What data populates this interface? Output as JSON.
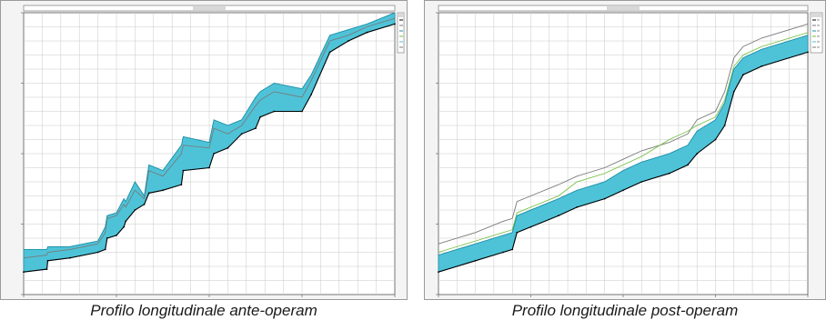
{
  "captions": {
    "left": "Profilo longitudinale ante-operam",
    "right": "Profilo longitudinale post-operam"
  },
  "colors": {
    "water": "#4ec3d8",
    "water_stroke": "#1e8fa8",
    "bed": "#000000",
    "ground": "#7a7a7a",
    "energy": "#6fbf3a",
    "grid": "#c8c8c8"
  },
  "chart_data": [
    {
      "type": "area",
      "caption": "Profilo longitudinale ante-operam",
      "grid": true,
      "legend_position": "top-right",
      "xlim": [
        0,
        4000
      ],
      "ylim": [
        0,
        100
      ],
      "x": [
        0,
        250,
        260,
        500,
        800,
        880,
        900,
        1000,
        1080,
        1100,
        1200,
        1300,
        1350,
        1500,
        1700,
        1720,
        2000,
        2050,
        2200,
        2350,
        2500,
        2550,
        2700,
        3000,
        3100,
        3300,
        3500,
        3700,
        4000
      ],
      "bed_elevation": [
        8,
        9,
        12,
        13,
        15,
        16,
        20,
        21,
        24,
        26,
        30,
        32,
        36,
        37,
        39,
        44,
        45,
        50,
        52,
        57,
        59,
        63,
        65,
        65,
        71,
        86,
        90,
        93,
        96
      ],
      "water_surface": [
        16,
        16,
        17,
        17,
        19,
        24,
        28,
        29,
        34,
        33,
        40,
        35,
        46,
        44,
        53,
        56,
        54,
        62,
        60,
        62,
        70,
        72,
        75,
        73,
        78,
        92,
        94,
        96,
        100
      ],
      "ground_left": [
        13,
        14,
        15,
        16,
        18,
        22,
        27,
        28,
        32,
        31,
        37,
        34,
        44,
        42,
        50,
        53,
        52,
        59,
        57,
        60,
        67,
        69,
        72,
        70,
        76,
        90,
        92,
        95,
        98
      ]
    },
    {
      "type": "area",
      "caption": "Profilo longitudinale post-operam",
      "grid": true,
      "legend_position": "top-right",
      "xlim": [
        0,
        4000
      ],
      "ylim": [
        0,
        100
      ],
      "x": [
        0,
        400,
        700,
        800,
        850,
        1000,
        1300,
        1500,
        1800,
        2000,
        2200,
        2500,
        2700,
        2800,
        3000,
        3100,
        3200,
        3300,
        3500,
        4000
      ],
      "bed_elevation": [
        8,
        12,
        15,
        16,
        22,
        24,
        28,
        31,
        34,
        37,
        40,
        43,
        46,
        50,
        55,
        60,
        72,
        78,
        81,
        86
      ],
      "water_surface": [
        14,
        18,
        21,
        22,
        28,
        30,
        34,
        37,
        40,
        44,
        47,
        50,
        53,
        58,
        62,
        68,
        80,
        84,
        87,
        92
      ],
      "ground_left": [
        18,
        22,
        26,
        27,
        33,
        35,
        39,
        42,
        45,
        48,
        51,
        54,
        57,
        62,
        65,
        72,
        84,
        88,
        91,
        96
      ],
      "energy_line": [
        15,
        19,
        22,
        23,
        29,
        31,
        35,
        40,
        43,
        46,
        49,
        55,
        58,
        60,
        63,
        69,
        81,
        85,
        88,
        93
      ]
    }
  ]
}
